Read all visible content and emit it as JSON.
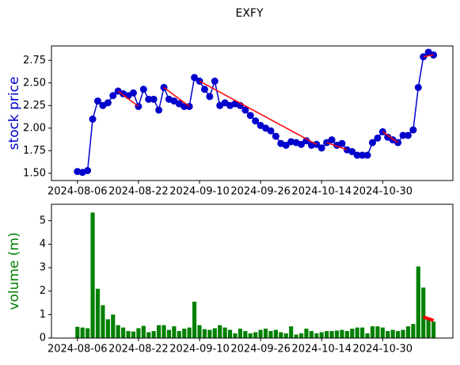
{
  "chart_data": [
    {
      "type": "line",
      "title": "EXFY",
      "ylabel": "stock price",
      "color": "#0000cc",
      "label_color": "#0000cc",
      "trend_color": "#ff0000",
      "categories": [
        "2024-08-06",
        null,
        null,
        null,
        null,
        null,
        null,
        null,
        null,
        null,
        null,
        null,
        "2024-08-22",
        null,
        null,
        null,
        null,
        null,
        null,
        null,
        null,
        null,
        null,
        null,
        "2024-09-10",
        null,
        null,
        null,
        null,
        null,
        null,
        null,
        null,
        null,
        null,
        null,
        "2024-09-26",
        null,
        null,
        null,
        null,
        null,
        null,
        null,
        null,
        null,
        null,
        null,
        "2024-10-14",
        null,
        null,
        null,
        null,
        null,
        null,
        null,
        null,
        null,
        null,
        null,
        "2024-10-30",
        null,
        null,
        null,
        null,
        null,
        null,
        null,
        null,
        null,
        null
      ],
      "values": [
        1.52,
        1.51,
        1.53,
        2.1,
        2.3,
        2.25,
        2.28,
        2.36,
        2.41,
        2.38,
        2.36,
        2.39,
        2.24,
        2.43,
        2.32,
        2.32,
        2.2,
        2.45,
        2.32,
        2.3,
        2.27,
        2.24,
        2.24,
        2.56,
        2.52,
        2.43,
        2.35,
        2.52,
        2.25,
        2.28,
        2.25,
        2.27,
        2.25,
        2.2,
        2.14,
        2.08,
        2.03,
        2.0,
        1.97,
        1.91,
        1.83,
        1.81,
        1.85,
        1.84,
        1.82,
        1.86,
        1.81,
        1.82,
        1.78,
        1.84,
        1.87,
        1.81,
        1.83,
        1.76,
        1.74,
        1.7,
        1.7,
        1.7,
        1.84,
        1.89,
        1.96,
        1.9,
        1.87,
        1.84,
        1.92,
        1.92,
        1.98,
        2.45,
        2.79,
        2.84,
        2.81
      ],
      "trend_lines": [
        {
          "x": [
            8,
            12
          ],
          "y": [
            2.41,
            2.24
          ]
        },
        {
          "x": [
            17,
            22
          ],
          "y": [
            2.45,
            2.24
          ]
        },
        {
          "x": [
            24,
            47
          ],
          "y": [
            2.52,
            1.82
          ]
        },
        {
          "x": [
            49,
            53
          ],
          "y": [
            1.84,
            1.76
          ]
        },
        {
          "x": [
            60,
            63
          ],
          "y": [
            1.96,
            1.84
          ]
        },
        {
          "x": [
            68,
            70
          ],
          "y": [
            2.79,
            2.81
          ]
        }
      ],
      "xlim": [
        -5.1,
        73.8
      ],
      "ylim": [
        1.42,
        2.91
      ],
      "yticks": [
        {
          "value": 1.5,
          "label": "1.50"
        },
        {
          "value": 1.75,
          "label": "1.75"
        },
        {
          "value": 2.0,
          "label": "2.00"
        },
        {
          "value": 2.25,
          "label": "2.25"
        },
        {
          "value": 2.5,
          "label": "2.50"
        },
        {
          "value": 2.75,
          "label": "2.75"
        }
      ]
    },
    {
      "type": "bar",
      "ylabel": "volume (m)",
      "color": "#008000",
      "label_color": "#008000",
      "trend_color": "#ff0000",
      "categories": [
        "2024-08-06",
        null,
        null,
        null,
        null,
        null,
        null,
        null,
        null,
        null,
        null,
        null,
        "2024-08-22",
        null,
        null,
        null,
        null,
        null,
        null,
        null,
        null,
        null,
        null,
        null,
        "2024-09-10",
        null,
        null,
        null,
        null,
        null,
        null,
        null,
        null,
        null,
        null,
        null,
        "2024-09-26",
        null,
        null,
        null,
        null,
        null,
        null,
        null,
        null,
        null,
        null,
        null,
        "2024-10-14",
        null,
        null,
        null,
        null,
        null,
        null,
        null,
        null,
        null,
        null,
        null,
        "2024-10-30",
        null,
        null,
        null,
        null,
        null,
        null,
        null,
        null,
        null,
        null
      ],
      "values": [
        0.48,
        0.45,
        0.42,
        5.35,
        2.1,
        1.4,
        0.8,
        1.0,
        0.55,
        0.45,
        0.3,
        0.28,
        0.42,
        0.52,
        0.25,
        0.3,
        0.55,
        0.55,
        0.35,
        0.5,
        0.3,
        0.4,
        0.45,
        1.55,
        0.55,
        0.38,
        0.35,
        0.42,
        0.55,
        0.45,
        0.35,
        0.2,
        0.4,
        0.3,
        0.2,
        0.25,
        0.35,
        0.4,
        0.3,
        0.35,
        0.25,
        0.2,
        0.5,
        0.15,
        0.2,
        0.4,
        0.3,
        0.2,
        0.25,
        0.3,
        0.3,
        0.32,
        0.35,
        0.3,
        0.4,
        0.45,
        0.45,
        0.2,
        0.5,
        0.5,
        0.45,
        0.3,
        0.35,
        0.3,
        0.35,
        0.5,
        0.6,
        3.05,
        2.15,
        0.8,
        0.7
      ],
      "trend_lines": [
        {
          "x": [
            68,
            70
          ],
          "y": [
            0.9,
            0.75
          ]
        }
      ],
      "xlim": [
        -5.1,
        73.8
      ],
      "ylim": [
        0,
        5.7
      ],
      "yticks": [
        0,
        1,
        2,
        3,
        4,
        5
      ]
    }
  ]
}
